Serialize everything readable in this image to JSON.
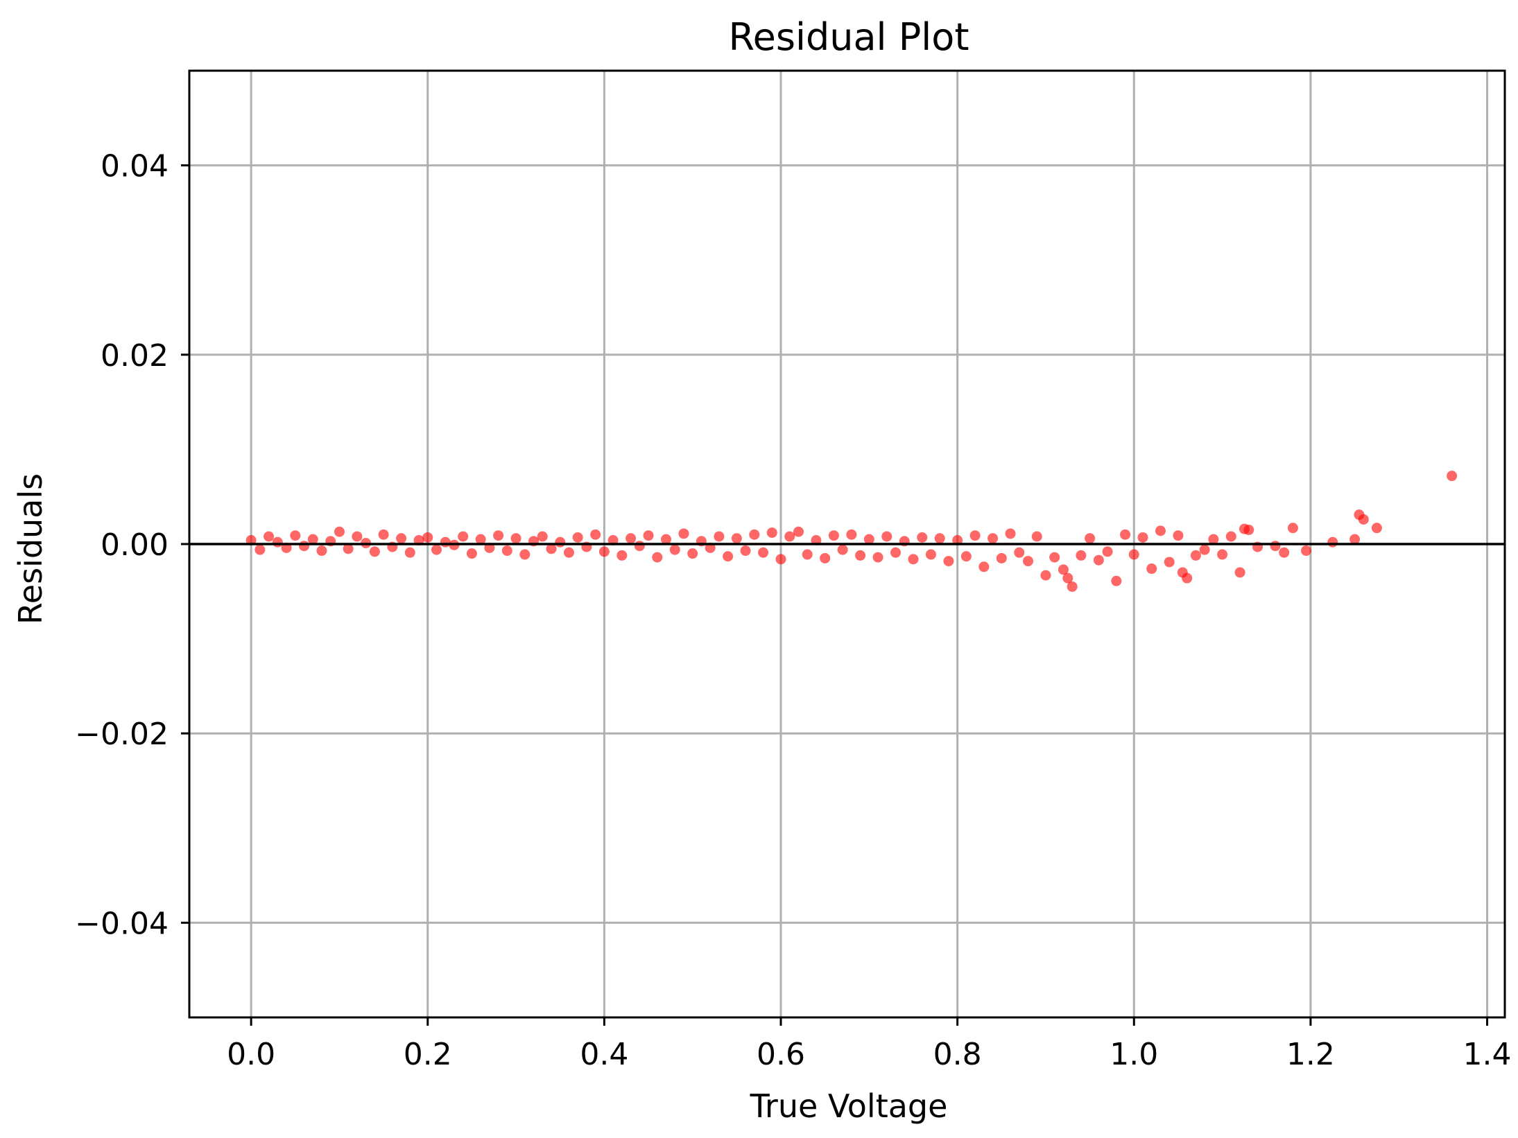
{
  "chart_data": {
    "type": "scatter",
    "title": "Residual Plot",
    "xlabel": "True Voltage",
    "ylabel": "Residuals",
    "xlim": [
      -0.07,
      1.42
    ],
    "ylim": [
      -0.05,
      0.05
    ],
    "xticks": [
      0.0,
      0.2,
      0.4,
      0.6,
      0.8,
      1.0,
      1.2,
      1.4
    ],
    "xtick_labels": [
      "0.0",
      "0.2",
      "0.4",
      "0.6",
      "0.8",
      "1.0",
      "1.2",
      "1.4"
    ],
    "yticks": [
      -0.04,
      -0.02,
      0.0,
      0.02,
      0.04
    ],
    "ytick_labels": [
      "−0.04",
      "−0.02",
      "0.00",
      "0.02",
      "0.04"
    ],
    "grid": true,
    "reference_line": {
      "y": 0.0,
      "color": "#000000"
    },
    "series": [
      {
        "color": "#ff0000",
        "opacity": 0.6,
        "points": [
          [
            0.0,
            0.0004
          ],
          [
            0.01,
            -0.0006
          ],
          [
            0.02,
            0.0008
          ],
          [
            0.03,
            0.0002
          ],
          [
            0.04,
            -0.0004
          ],
          [
            0.05,
            0.0009
          ],
          [
            0.06,
            -0.0002
          ],
          [
            0.07,
            0.0005
          ],
          [
            0.08,
            -0.0007
          ],
          [
            0.09,
            0.0003
          ],
          [
            0.1,
            0.0013
          ],
          [
            0.11,
            -0.0005
          ],
          [
            0.12,
            0.0008
          ],
          [
            0.13,
            0.0001
          ],
          [
            0.14,
            -0.0008
          ],
          [
            0.15,
            0.001
          ],
          [
            0.16,
            -0.0003
          ],
          [
            0.17,
            0.0006
          ],
          [
            0.18,
            -0.0009
          ],
          [
            0.19,
            0.0004
          ],
          [
            0.2,
            0.0007
          ],
          [
            0.21,
            -0.0006
          ],
          [
            0.22,
            0.0002
          ],
          [
            0.23,
            -0.0001
          ],
          [
            0.24,
            0.0008
          ],
          [
            0.25,
            -0.001
          ],
          [
            0.26,
            0.0005
          ],
          [
            0.27,
            -0.0004
          ],
          [
            0.28,
            0.0009
          ],
          [
            0.29,
            -0.0007
          ],
          [
            0.3,
            0.0006
          ],
          [
            0.31,
            -0.0011
          ],
          [
            0.32,
            0.0003
          ],
          [
            0.33,
            0.0008
          ],
          [
            0.34,
            -0.0005
          ],
          [
            0.35,
            0.0002
          ],
          [
            0.36,
            -0.0009
          ],
          [
            0.37,
            0.0007
          ],
          [
            0.38,
            -0.0003
          ],
          [
            0.39,
            0.001
          ],
          [
            0.4,
            -0.0008
          ],
          [
            0.41,
            0.0004
          ],
          [
            0.42,
            -0.0012
          ],
          [
            0.43,
            0.0006
          ],
          [
            0.44,
            -0.0002
          ],
          [
            0.45,
            0.0009
          ],
          [
            0.46,
            -0.0014
          ],
          [
            0.47,
            0.0005
          ],
          [
            0.48,
            -0.0006
          ],
          [
            0.49,
            0.0011
          ],
          [
            0.5,
            -0.001
          ],
          [
            0.51,
            0.0003
          ],
          [
            0.52,
            -0.0004
          ],
          [
            0.53,
            0.0008
          ],
          [
            0.54,
            -0.0013
          ],
          [
            0.55,
            0.0006
          ],
          [
            0.56,
            -0.0007
          ],
          [
            0.57,
            0.001
          ],
          [
            0.58,
            -0.0009
          ],
          [
            0.59,
            0.0012
          ],
          [
            0.6,
            -0.0016
          ],
          [
            0.61,
            0.0008
          ],
          [
            0.62,
            0.0013
          ],
          [
            0.63,
            -0.0011
          ],
          [
            0.64,
            0.0004
          ],
          [
            0.65,
            -0.0015
          ],
          [
            0.66,
            0.0009
          ],
          [
            0.67,
            -0.0006
          ],
          [
            0.68,
            0.001
          ],
          [
            0.69,
            -0.0012
          ],
          [
            0.7,
            0.0005
          ],
          [
            0.71,
            -0.0014
          ],
          [
            0.72,
            0.0008
          ],
          [
            0.73,
            -0.0009
          ],
          [
            0.74,
            0.0003
          ],
          [
            0.75,
            -0.0016
          ],
          [
            0.76,
            0.0007
          ],
          [
            0.77,
            -0.0011
          ],
          [
            0.78,
            0.0006
          ],
          [
            0.79,
            -0.0018
          ],
          [
            0.8,
            0.0004
          ],
          [
            0.81,
            -0.0013
          ],
          [
            0.82,
            0.0009
          ],
          [
            0.83,
            -0.0024
          ],
          [
            0.84,
            0.0006
          ],
          [
            0.85,
            -0.0015
          ],
          [
            0.86,
            0.0011
          ],
          [
            0.87,
            -0.0009
          ],
          [
            0.88,
            -0.0018
          ],
          [
            0.89,
            0.0008
          ],
          [
            0.9,
            -0.0033
          ],
          [
            0.91,
            -0.0014
          ],
          [
            0.92,
            -0.0027
          ],
          [
            0.925,
            -0.0036
          ],
          [
            0.93,
            -0.0045
          ],
          [
            0.94,
            -0.0012
          ],
          [
            0.95,
            0.0006
          ],
          [
            0.96,
            -0.0017
          ],
          [
            0.97,
            -0.0008
          ],
          [
            0.98,
            -0.0039
          ],
          [
            0.99,
            0.001
          ],
          [
            1.0,
            -0.0011
          ],
          [
            1.01,
            0.0007
          ],
          [
            1.02,
            -0.0026
          ],
          [
            1.03,
            0.0014
          ],
          [
            1.04,
            -0.0019
          ],
          [
            1.05,
            0.0009
          ],
          [
            1.055,
            -0.003
          ],
          [
            1.06,
            -0.0036
          ],
          [
            1.07,
            -0.0012
          ],
          [
            1.08,
            -0.0006
          ],
          [
            1.09,
            0.0005
          ],
          [
            1.1,
            -0.0011
          ],
          [
            1.11,
            0.0008
          ],
          [
            1.12,
            -0.003
          ],
          [
            1.125,
            0.0016
          ],
          [
            1.13,
            0.0015
          ],
          [
            1.14,
            -0.0003
          ],
          [
            1.16,
            -0.0002
          ],
          [
            1.17,
            -0.0009
          ],
          [
            1.18,
            0.0017
          ],
          [
            1.195,
            -0.0007
          ],
          [
            1.225,
            0.0002
          ],
          [
            1.25,
            0.0005
          ],
          [
            1.255,
            0.0031
          ],
          [
            1.26,
            0.0026
          ],
          [
            1.275,
            0.0017
          ],
          [
            1.36,
            0.0072
          ]
        ]
      }
    ]
  }
}
